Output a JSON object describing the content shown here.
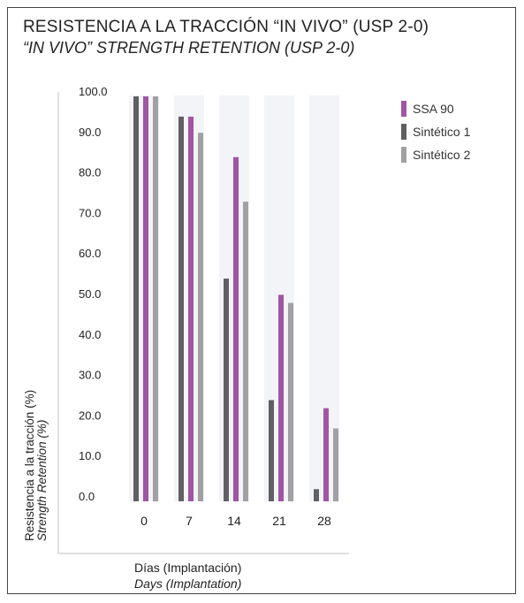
{
  "chart_data": {
    "type": "bar",
    "title": "RESISTENCIA A LA TRACCIÓN “IN VIVO” (USP 2-0)",
    "subtitle": "“IN VIVO” STRENGTH RETENTION (USP 2-0)",
    "xlabel": "Días (Implantación)",
    "xlabel_en": "Days (Implantation)",
    "ylabel": "Resistencia a la tracción (%)",
    "ylabel_en": "Strength Retention (%)",
    "categories": [
      "0",
      "7",
      "14",
      "21",
      "28"
    ],
    "y_ticks": [
      "100.0",
      "90.0",
      "80.0",
      "70.0",
      "60.0",
      "50.0",
      "40.0",
      "30.0",
      "20.0",
      "10.0",
      "0.0"
    ],
    "ylim": [
      0,
      100
    ],
    "series": [
      {
        "name": "Sintético 1",
        "values": [
          100,
          95,
          55,
          25,
          3
        ]
      },
      {
        "name": "SSA 90",
        "values": [
          100,
          95,
          85,
          51,
          23
        ]
      },
      {
        "name": "Sintético 2",
        "values": [
          100,
          91,
          74,
          49,
          18
        ]
      }
    ],
    "legend": {
      "placement": "top-right",
      "order": [
        "SSA 90",
        "Sintético 1",
        "Sintético 2"
      ]
    },
    "colors": {
      "SSA 90": "#a055a5",
      "Sintético 1": "#5f5f64",
      "Sintético 2": "#a0a0a5",
      "column_background": "#f3f4f8"
    },
    "grid": false
  }
}
